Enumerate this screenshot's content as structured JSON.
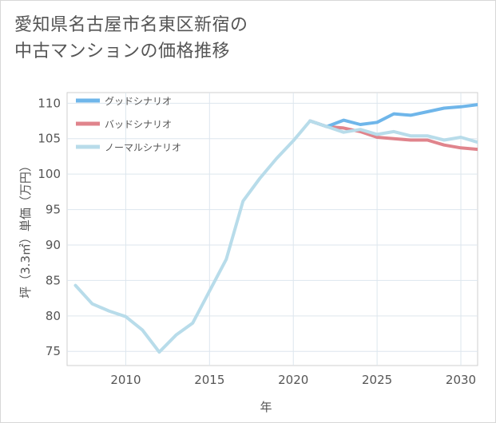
{
  "page": {
    "title_lines": [
      "愛知県名古屋市名東区新宿の",
      "中古マンションの価格推移"
    ]
  },
  "chart_data": {
    "type": "line",
    "title": "愛知県名古屋市名東区新宿の中古マンションの価格推移",
    "xlabel": "年",
    "ylabel": "坪（3.3㎡）単価（万円）",
    "xlim": [
      2006.5,
      2031
    ],
    "ylim": [
      73,
      111.5
    ],
    "x_ticks": [
      2010,
      2015,
      2020,
      2025,
      2030
    ],
    "y_ticks": [
      75,
      80,
      85,
      90,
      95,
      100,
      105,
      110
    ],
    "grid": true,
    "legend_position": "top-left",
    "series": [
      {
        "name": "グッドシナリオ",
        "color": "#6fb6ea",
        "x": [
          2021,
          2022,
          2023,
          2024,
          2025,
          2026,
          2027,
          2028,
          2029,
          2030,
          2031
        ],
        "values": [
          107.5,
          106.7,
          107.6,
          107.0,
          107.3,
          108.5,
          108.3,
          108.8,
          109.3,
          109.5,
          109.8
        ]
      },
      {
        "name": "バッドシナリオ",
        "color": "#e0848c",
        "x": [
          2021,
          2022,
          2023,
          2024,
          2025,
          2026,
          2027,
          2028,
          2029,
          2030,
          2031
        ],
        "values": [
          107.5,
          106.7,
          106.5,
          106.0,
          105.2,
          105.0,
          104.8,
          104.8,
          104.1,
          103.7,
          103.5
        ]
      },
      {
        "name": "ノーマルシナリオ",
        "color": "#b8dcea",
        "x": [
          2007,
          2008,
          2009,
          2010,
          2011,
          2012,
          2013,
          2014,
          2015,
          2016,
          2017,
          2018,
          2019,
          2020,
          2021,
          2022,
          2023,
          2024,
          2025,
          2026,
          2027,
          2028,
          2029,
          2030,
          2031
        ],
        "values": [
          84.3,
          81.7,
          80.7,
          79.9,
          78.0,
          74.9,
          77.3,
          79.0,
          83.5,
          88.0,
          96.2,
          99.4,
          102.2,
          104.7,
          107.5,
          106.7,
          105.9,
          106.3,
          105.6,
          106.0,
          105.4,
          105.4,
          104.8,
          105.2,
          104.5
        ]
      }
    ]
  }
}
